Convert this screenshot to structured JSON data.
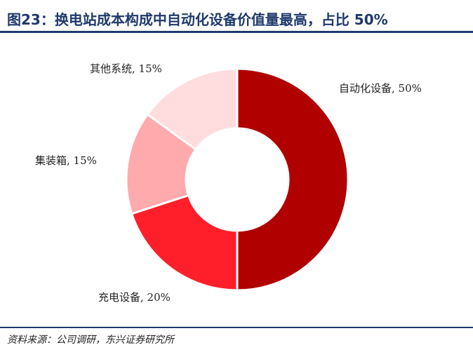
{
  "title": "图23：换电站成本构成中自动化设备价值量最高，占比 50%",
  "source": "资料来源：公司调研，东兴证券研究所",
  "chart_data": {
    "type": "pie",
    "donut": true,
    "slices": [
      {
        "label": "自动化设备, 50%",
        "name": "自动化设备",
        "value": 50,
        "color": "#b00000"
      },
      {
        "label": "充电设备, 20%",
        "name": "充电设备",
        "value": 20,
        "color": "#ff1f2a"
      },
      {
        "label": "集装箱, 15%",
        "name": "集装箱",
        "value": 15,
        "color": "#ffaaad"
      },
      {
        "label": "其他系统, 15%",
        "name": "其他系统",
        "value": 15,
        "color": "#ffdcde"
      }
    ]
  }
}
